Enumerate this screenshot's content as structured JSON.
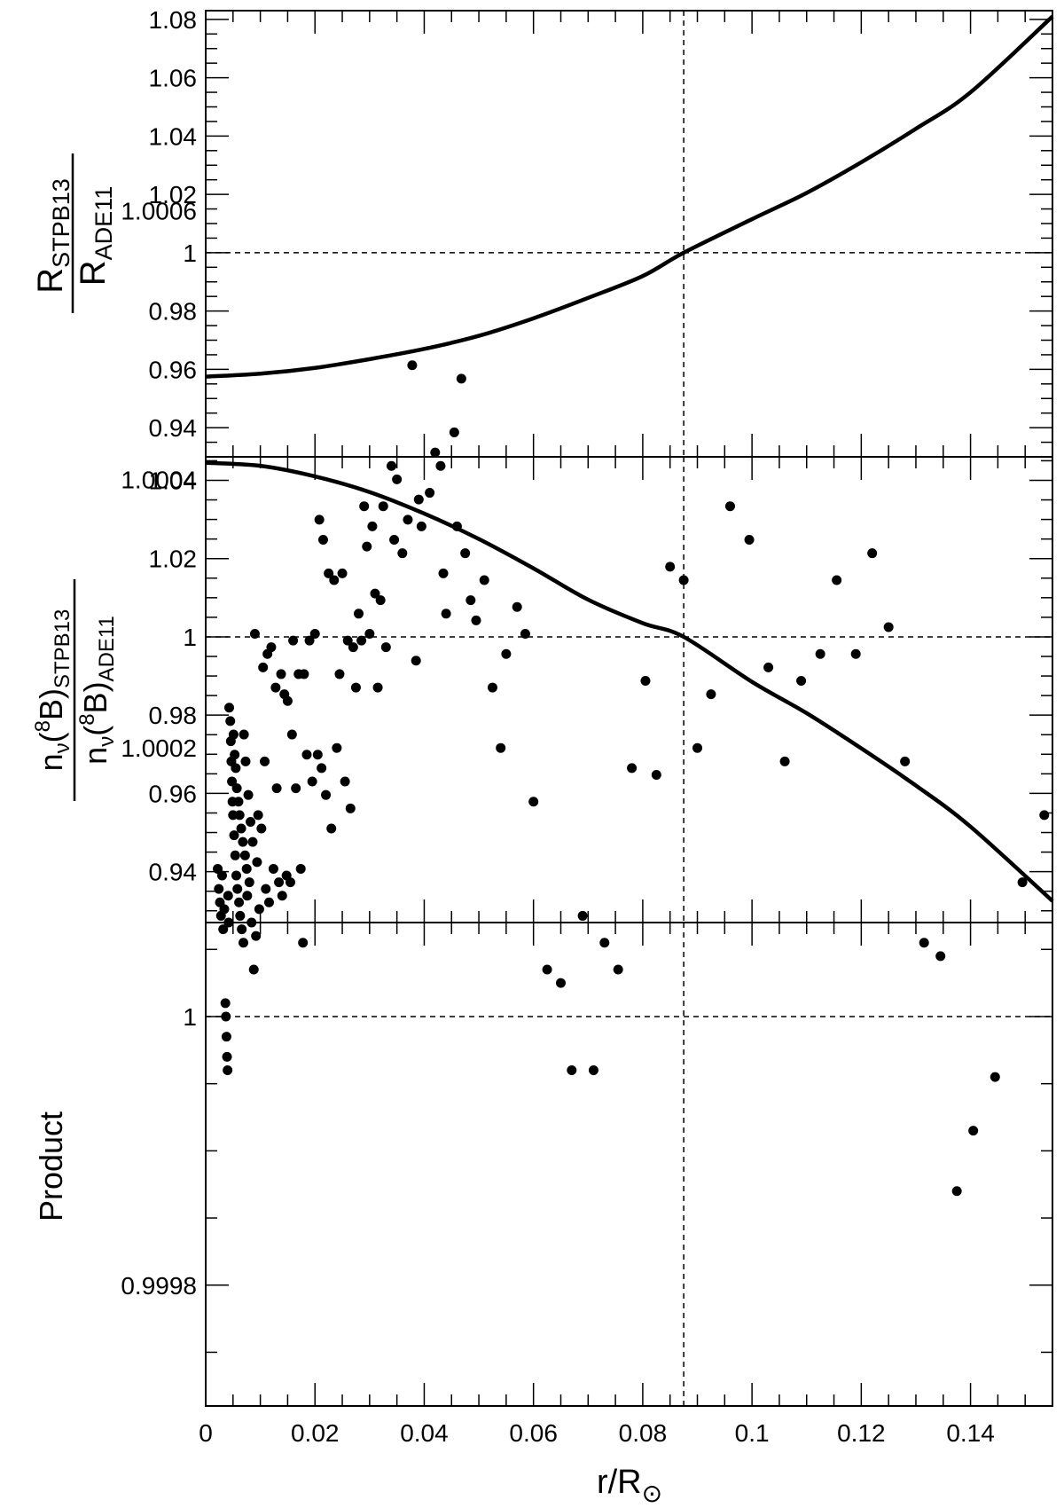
{
  "chart_data": [
    {
      "type": "line",
      "panel": "top",
      "ylabel": {
        "numerator": "R",
        "numerator_sub": "STPB13",
        "denominator": "R",
        "denominator_sub": "ADE11"
      },
      "xlim": [
        0,
        0.155
      ],
      "ylim": [
        0.93,
        1.083
      ],
      "yticks": [
        0.94,
        0.96,
        0.98,
        1.0,
        1.02,
        1.04,
        1.06,
        1.08
      ],
      "ytick_labels": [
        "0.94",
        "0.96",
        "0.98",
        "1",
        "1.02",
        "1.04",
        "1.06",
        "1.08"
      ],
      "reference_y": 1.0,
      "reference_x": 0.0875,
      "series": [
        {
          "x": [
            0,
            0.01,
            0.02,
            0.03,
            0.04,
            0.05,
            0.06,
            0.07,
            0.08,
            0.0875,
            0.1,
            0.11,
            0.12,
            0.13,
            0.14,
            0.155
          ],
          "values": [
            0.9575,
            0.9585,
            0.9605,
            0.9635,
            0.967,
            0.9715,
            0.9775,
            0.9845,
            0.992,
            1.0,
            1.0115,
            1.0205,
            1.031,
            1.0425,
            1.055,
            1.081
          ]
        }
      ]
    },
    {
      "type": "line",
      "panel": "middle",
      "ylabel": {
        "numerator": "n",
        "numerator_sub1": "ν",
        "numerator_mid": "(",
        "numerator_sup": "8",
        "numerator_end": "B)",
        "numerator_sub": "STPB13",
        "denominator": "n",
        "denominator_sub1": "ν",
        "denominator_mid": "(",
        "denominator_sup": "8",
        "denominator_end": "B)",
        "denominator_sub": "ADE11"
      },
      "xlim": [
        0,
        0.155
      ],
      "ylim": [
        0.927,
        1.046
      ],
      "yticks": [
        0.94,
        0.96,
        0.98,
        1.0,
        1.02,
        1.04
      ],
      "ytick_labels": [
        "0.94",
        "0.96",
        "0.98",
        "1",
        "1.02",
        "1.04"
      ],
      "reference_y": 1.0,
      "reference_x": 0.0875,
      "series": [
        {
          "x": [
            0,
            0.01,
            0.02,
            0.03,
            0.04,
            0.05,
            0.06,
            0.07,
            0.08,
            0.0875,
            0.1,
            0.11,
            0.12,
            0.13,
            0.14,
            0.155
          ],
          "values": [
            1.0445,
            1.0437,
            1.041,
            1.037,
            1.0315,
            1.025,
            1.0175,
            1.0095,
            1.0035,
            1.0,
            0.9885,
            0.9805,
            0.9715,
            0.962,
            0.9515,
            0.9325
          ]
        }
      ]
    },
    {
      "type": "scatter",
      "panel": "bottom",
      "xlabel": {
        "text": "r/R",
        "sub": "⊙"
      },
      "ylabel": "Product",
      "xlim": [
        0,
        0.155
      ],
      "ylim": [
        0.99971,
        1.00007
      ],
      "yticks": [
        0.9998,
        1.0,
        1.0002,
        1.0004,
        1.0006
      ],
      "ytick_labels": [
        "0.9998",
        "1",
        "1.0002",
        "1.0004",
        "1.0006"
      ],
      "xticks": [
        0,
        0.02,
        0.04,
        0.06,
        0.08,
        0.1,
        0.12,
        0.14
      ],
      "xtick_labels": [
        "0",
        "0.02",
        "0.04",
        "0.06",
        "0.08",
        "0.1",
        "0.12",
        "0.14"
      ],
      "reference_y": 1.0,
      "reference_x": 0.0875,
      "y_offset_note": "values below are (Product - 1) x 1e4",
      "points": [
        [
          0.0022,
          1.1
        ],
        [
          0.0024,
          0.95
        ],
        [
          0.0026,
          0.85
        ],
        [
          0.0028,
          0.75
        ],
        [
          0.003,
          1.05
        ],
        [
          0.0032,
          0.65
        ],
        [
          0.0034,
          0.8
        ],
        [
          0.0036,
          0.1
        ],
        [
          0.0037,
          0.0
        ],
        [
          0.0038,
          -0.15
        ],
        [
          0.0039,
          -0.3
        ],
        [
          0.004,
          -0.4
        ],
        [
          0.0041,
          0.9
        ],
        [
          0.0042,
          0.7
        ],
        [
          0.0043,
          2.3
        ],
        [
          0.0045,
          2.2
        ],
        [
          0.0046,
          2.05
        ],
        [
          0.0047,
          1.9
        ],
        [
          0.0048,
          1.75
        ],
        [
          0.0049,
          1.6
        ],
        [
          0.005,
          1.5
        ],
        [
          0.0051,
          2.1
        ],
        [
          0.0052,
          1.35
        ],
        [
          0.0053,
          1.95
        ],
        [
          0.0054,
          1.2
        ],
        [
          0.0055,
          1.85
        ],
        [
          0.0056,
          1.05
        ],
        [
          0.0057,
          1.7
        ],
        [
          0.0058,
          0.95
        ],
        [
          0.006,
          1.6
        ],
        [
          0.0061,
          0.85
        ],
        [
          0.0062,
          1.5
        ],
        [
          0.0063,
          0.75
        ],
        [
          0.0065,
          1.4
        ],
        [
          0.0066,
          0.65
        ],
        [
          0.0068,
          1.3
        ],
        [
          0.0069,
          0.55
        ],
        [
          0.007,
          2.1
        ],
        [
          0.0072,
          1.2
        ],
        [
          0.0073,
          1.9
        ],
        [
          0.0075,
          1.1
        ],
        [
          0.0076,
          0.9
        ],
        [
          0.0078,
          1.65
        ],
        [
          0.008,
          1.0
        ],
        [
          0.0082,
          1.45
        ],
        [
          0.0084,
          0.7
        ],
        [
          0.0086,
          1.3
        ],
        [
          0.0088,
          0.35
        ],
        [
          0.009,
          2.85
        ],
        [
          0.0092,
          0.6
        ],
        [
          0.0094,
          1.15
        ],
        [
          0.0096,
          1.5
        ],
        [
          0.0098,
          0.8
        ],
        [
          0.0102,
          1.4
        ],
        [
          0.0105,
          2.6
        ],
        [
          0.0108,
          1.9
        ],
        [
          0.011,
          0.95
        ],
        [
          0.0113,
          2.7
        ],
        [
          0.0116,
          0.85
        ],
        [
          0.012,
          2.75
        ],
        [
          0.0124,
          1.1
        ],
        [
          0.0128,
          2.45
        ],
        [
          0.013,
          1.7
        ],
        [
          0.0134,
          1.0
        ],
        [
          0.0138,
          2.55
        ],
        [
          0.014,
          0.9
        ],
        [
          0.0144,
          2.4
        ],
        [
          0.0148,
          1.05
        ],
        [
          0.015,
          2.35
        ],
        [
          0.0155,
          1.0
        ],
        [
          0.0158,
          2.1
        ],
        [
          0.016,
          2.8
        ],
        [
          0.0165,
          1.7
        ],
        [
          0.017,
          2.55
        ],
        [
          0.0174,
          1.1
        ],
        [
          0.0178,
          0.55
        ],
        [
          0.018,
          2.55
        ],
        [
          0.0185,
          1.95
        ],
        [
          0.019,
          2.8
        ],
        [
          0.0195,
          1.75
        ],
        [
          0.02,
          2.85
        ],
        [
          0.0205,
          1.95
        ],
        [
          0.0208,
          3.7
        ],
        [
          0.0212,
          1.85
        ],
        [
          0.0215,
          3.55
        ],
        [
          0.022,
          1.65
        ],
        [
          0.0225,
          3.3
        ],
        [
          0.023,
          1.4
        ],
        [
          0.0235,
          3.25
        ],
        [
          0.024,
          2.0
        ],
        [
          0.0245,
          2.55
        ],
        [
          0.025,
          3.3
        ],
        [
          0.0255,
          1.75
        ],
        [
          0.026,
          2.8
        ],
        [
          0.0265,
          1.55
        ],
        [
          0.027,
          2.75
        ],
        [
          0.0275,
          2.45
        ],
        [
          0.028,
          3.0
        ],
        [
          0.0285,
          2.8
        ],
        [
          0.029,
          3.8
        ],
        [
          0.0295,
          3.5
        ],
        [
          0.03,
          2.85
        ],
        [
          0.0305,
          3.65
        ],
        [
          0.031,
          3.15
        ],
        [
          0.0315,
          2.45
        ],
        [
          0.032,
          3.1
        ],
        [
          0.0325,
          3.8
        ],
        [
          0.033,
          2.75
        ],
        [
          0.034,
          4.1
        ],
        [
          0.0345,
          3.55
        ],
        [
          0.035,
          4.0
        ],
        [
          0.036,
          3.45
        ],
        [
          0.037,
          3.7
        ],
        [
          0.0378,
          4.85
        ],
        [
          0.0385,
          2.65
        ],
        [
          0.039,
          3.85
        ],
        [
          0.0395,
          3.65
        ],
        [
          0.041,
          3.9
        ],
        [
          0.042,
          4.2
        ],
        [
          0.043,
          4.1
        ],
        [
          0.0435,
          3.3
        ],
        [
          0.044,
          3.0
        ],
        [
          0.0455,
          4.35
        ],
        [
          0.046,
          3.65
        ],
        [
          0.0468,
          4.75
        ],
        [
          0.0475,
          3.45
        ],
        [
          0.0485,
          3.1
        ],
        [
          0.0495,
          2.95
        ],
        [
          0.051,
          3.25
        ],
        [
          0.0525,
          2.45
        ],
        [
          0.054,
          2.0
        ],
        [
          0.055,
          2.7
        ],
        [
          0.057,
          3.05
        ],
        [
          0.0585,
          2.85
        ],
        [
          0.06,
          1.6
        ],
        [
          0.0625,
          0.35
        ],
        [
          0.065,
          0.25
        ],
        [
          0.067,
          -0.4
        ],
        [
          0.069,
          0.75
        ],
        [
          0.071,
          -0.4
        ],
        [
          0.073,
          0.55
        ],
        [
          0.0755,
          0.35
        ],
        [
          0.078,
          1.85
        ],
        [
          0.0805,
          2.5
        ],
        [
          0.0825,
          1.8
        ],
        [
          0.085,
          3.35
        ],
        [
          0.0875,
          3.25
        ],
        [
          0.09,
          2.0
        ],
        [
          0.0925,
          2.4
        ],
        [
          0.096,
          3.8
        ],
        [
          0.0995,
          3.55
        ],
        [
          0.103,
          2.6
        ],
        [
          0.106,
          1.9
        ],
        [
          0.109,
          2.5
        ],
        [
          0.1125,
          2.7
        ],
        [
          0.1155,
          3.25
        ],
        [
          0.119,
          2.7
        ],
        [
          0.122,
          3.45
        ],
        [
          0.125,
          2.9
        ],
        [
          0.128,
          1.9
        ],
        [
          0.1315,
          0.55
        ],
        [
          0.1345,
          0.45
        ],
        [
          0.1375,
          -1.3
        ],
        [
          0.1405,
          -0.85
        ],
        [
          0.1445,
          -0.45
        ],
        [
          0.1495,
          1.0
        ],
        [
          0.1535,
          1.5
        ]
      ]
    }
  ]
}
